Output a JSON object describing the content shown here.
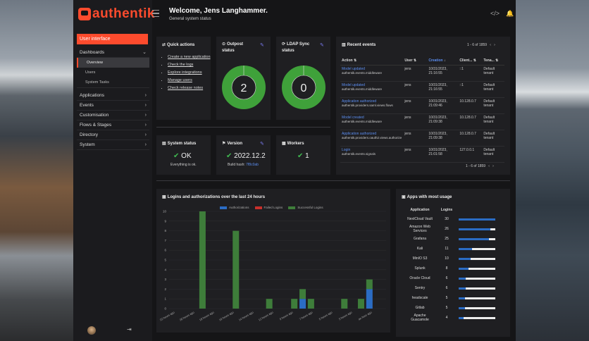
{
  "brand": {
    "name": "authentik"
  },
  "header": {
    "title": "Welcome, Jens Langhammer.",
    "subtitle": "General system status"
  },
  "sidebar": {
    "top": "User interface",
    "sections": [
      {
        "label": "Dashboards",
        "open": true,
        "children": [
          "Overview",
          "Users",
          "System Tasks"
        ]
      },
      {
        "label": "Applications"
      },
      {
        "label": "Events"
      },
      {
        "label": "Customisation"
      },
      {
        "label": "Flows & Stages"
      },
      {
        "label": "Directory"
      },
      {
        "label": "System"
      }
    ]
  },
  "quick_actions": {
    "title": "Quick actions",
    "items": [
      "Create a new application",
      "Check the logs",
      "Explore integrations",
      "Manage users",
      "Check release notes"
    ]
  },
  "outpost": {
    "title": "Outpost status",
    "value": "2"
  },
  "ldap": {
    "title": "LDAP Sync status",
    "value": "0"
  },
  "system_status": {
    "title": "System status",
    "value": "OK",
    "sub": "Everything is ok."
  },
  "version": {
    "title": "Version",
    "value": "2022.12.2",
    "sub_prefix": "Build hash: ",
    "sub_link": "7f8c0ab"
  },
  "workers": {
    "title": "Workers",
    "value": "1"
  },
  "recent_events": {
    "title": "Recent events",
    "pagination": "1 - 6 of 1859",
    "columns": [
      "Action",
      "User",
      "Creation",
      "Client...",
      "Tena..."
    ],
    "rows": [
      {
        "action": "Model updated",
        "app": "authentik.events.middleware",
        "user": "jens",
        "created": "10/31/2023, 21:16:55",
        "client": "::1",
        "tenant": "Default tenant"
      },
      {
        "action": "Model updated",
        "app": "authentik.events.middleware",
        "user": "jens",
        "created": "10/31/2023, 21:16:55",
        "client": "::1",
        "tenant": "Default tenant"
      },
      {
        "action": "Application authorized",
        "app": "authentik.providers.saml.views.flows",
        "user": "jens",
        "created": "10/31/2023, 21:09:46",
        "client": "10.128.0.7",
        "tenant": "Default tenant"
      },
      {
        "action": "Model created",
        "app": "authentik.events.middleware",
        "user": "jens",
        "created": "10/31/2023, 21:09:38",
        "client": "10.128.0.7",
        "tenant": "Default tenant"
      },
      {
        "action": "Application authorized",
        "app": "authentik.providers.oauth2.views.authorize",
        "user": "jens",
        "created": "10/31/2023, 21:09:38",
        "client": "10.128.0.7",
        "tenant": "Default tenant"
      },
      {
        "action": "Login",
        "app": "authentik.events.signals",
        "user": "jens",
        "created": "10/31/2023, 21:01:58",
        "client": "127.0.0.1",
        "tenant": "Default tenant"
      }
    ]
  },
  "logins_chart": {
    "title": "Logins and authorizations over the last 24 hours",
    "colors": {
      "authorizations": "#2b6cc4",
      "failed": "#c9302c",
      "successful": "#3e7d3a"
    },
    "chart_data": {
      "type": "bar",
      "stacked": true,
      "legend": "top",
      "ylim": [
        0,
        10
      ],
      "yticks": [
        0,
        1,
        2,
        3,
        4,
        5,
        6,
        7,
        8,
        9,
        10
      ],
      "categories": [
        "22 hours ago",
        "20 hours ago",
        "18 hours ago",
        "16 hours ago",
        "14 hours ago",
        "12 hours ago",
        "9 hours ago",
        "7 hours ago",
        "5 hours ago",
        "3 hours ago",
        "an hour ago"
      ],
      "bar_values": [
        {
          "pos": 4,
          "successful": 10,
          "authorizations": 0
        },
        {
          "pos": 8,
          "successful": 8,
          "authorizations": 0
        },
        {
          "pos": 12,
          "successful": 1,
          "authorizations": 0
        },
        {
          "pos": 15,
          "successful": 1,
          "authorizations": 0
        },
        {
          "pos": 16,
          "successful": 1,
          "authorizations": 1
        },
        {
          "pos": 17,
          "successful": 1,
          "authorizations": 0
        },
        {
          "pos": 21,
          "successful": 1,
          "authorizations": 0
        },
        {
          "pos": 23,
          "successful": 1,
          "authorizations": 0
        },
        {
          "pos": 24,
          "successful": 1,
          "authorizations": 2
        }
      ],
      "series": [
        {
          "name": "Authorizations"
        },
        {
          "name": "Failed Logins"
        },
        {
          "name": "Successful Logins"
        }
      ]
    }
  },
  "apps_usage": {
    "title": "Apps with most usage",
    "columns": [
      "Application",
      "Logins"
    ],
    "max": 30,
    "rows": [
      {
        "name": "NextCloud Vault",
        "logins": 30
      },
      {
        "name": "Amazon Web Services",
        "logins": 26
      },
      {
        "name": "Grafana",
        "logins": 25
      },
      {
        "name": "Kali",
        "logins": 11
      },
      {
        "name": "MinIO S3",
        "logins": 10
      },
      {
        "name": "Splunk",
        "logins": 8
      },
      {
        "name": "Oracle Cloud",
        "logins": 6
      },
      {
        "name": "Sentry",
        "logins": 6
      },
      {
        "name": "headscale",
        "logins": 5
      },
      {
        "name": "Gitlab",
        "logins": 5
      },
      {
        "name": "Apache Guacamole",
        "logins": 4
      }
    ]
  }
}
